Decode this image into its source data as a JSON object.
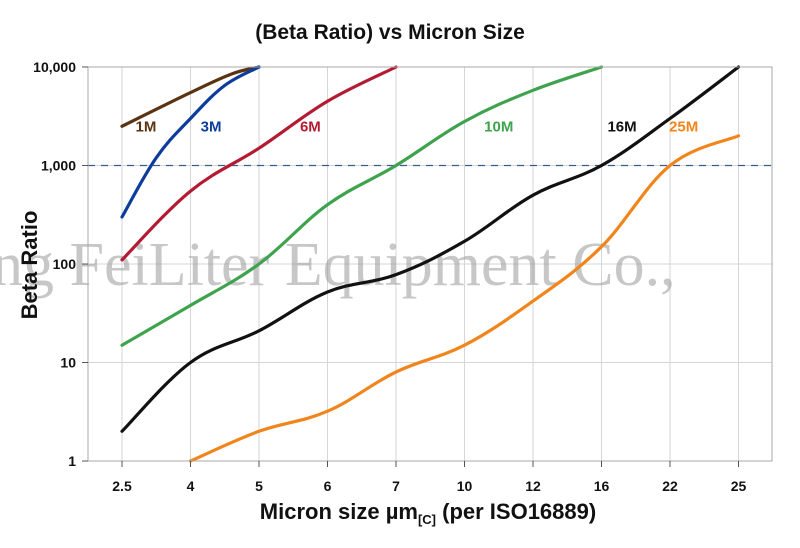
{
  "chart_data": {
    "type": "line",
    "title": "(Beta Ratio) vs Micron Size",
    "xlabel": "Micron size µm",
    "xlabel_subscript": "[C]",
    "xlabel_suffix": " (per ISO16889)",
    "ylabel": "Beta Ratio",
    "yscale": "log",
    "ylim": [
      1,
      10000
    ],
    "categories": [
      "2.5",
      "4",
      "5",
      "6",
      "7",
      "10",
      "12",
      "16",
      "22",
      "25"
    ],
    "y_ticks": [
      {
        "value": 1,
        "label": "1"
      },
      {
        "value": 10,
        "label": "10"
      },
      {
        "value": 100,
        "label": "100"
      },
      {
        "value": 1000,
        "label": "1,000"
      },
      {
        "value": 10000,
        "label": "10,000"
      }
    ],
    "grid": true,
    "reference_line": {
      "value": 1000,
      "style": "dashed",
      "color": "#3b5b8f"
    },
    "watermark": "ng FeiLiter Equipment Co.,",
    "series": [
      {
        "name": "1M",
        "color": "#5a3312",
        "points": [
          [
            0,
            2500
          ],
          [
            1,
            5500
          ],
          [
            1.6,
            8500
          ],
          [
            2,
            10000
          ]
        ],
        "label_pos": [
          0.35,
          2500
        ]
      },
      {
        "name": "3M",
        "color": "#0d3d9c",
        "points": [
          [
            0,
            300
          ],
          [
            0.5,
            1200
          ],
          [
            1,
            3000
          ],
          [
            1.5,
            6500
          ],
          [
            2,
            10000
          ]
        ],
        "label_pos": [
          1.3,
          2500
        ]
      },
      {
        "name": "6M",
        "color": "#b31b33",
        "points": [
          [
            0,
            110
          ],
          [
            1,
            550
          ],
          [
            2,
            1500
          ],
          [
            3,
            4500
          ],
          [
            4,
            10000
          ]
        ],
        "label_pos": [
          2.75,
          2500
        ]
      },
      {
        "name": "10M",
        "color": "#3fa34d",
        "points": [
          [
            0,
            15
          ],
          [
            1,
            38
          ],
          [
            2,
            100
          ],
          [
            3,
            400
          ],
          [
            4,
            1000
          ],
          [
            5,
            2800
          ],
          [
            6,
            5800
          ],
          [
            7,
            10000
          ]
        ],
        "label_pos": [
          5.5,
          2500
        ]
      },
      {
        "name": "16M",
        "color": "#111111",
        "points": [
          [
            0,
            2
          ],
          [
            1,
            10
          ],
          [
            2,
            21
          ],
          [
            3,
            52
          ],
          [
            4,
            78
          ],
          [
            5,
            170
          ],
          [
            6,
            500
          ],
          [
            7,
            1000
          ],
          [
            8,
            3000
          ],
          [
            9,
            10000
          ]
        ],
        "label_pos": [
          7.3,
          2500
        ]
      },
      {
        "name": "25M",
        "color": "#f0851c",
        "points": [
          [
            1,
            1
          ],
          [
            2,
            2
          ],
          [
            3,
            3.2
          ],
          [
            4,
            8
          ],
          [
            5,
            15
          ],
          [
            6,
            42
          ],
          [
            7,
            150
          ],
          [
            8,
            1000
          ],
          [
            9,
            2000
          ]
        ],
        "label_pos": [
          8.2,
          2500
        ]
      }
    ]
  }
}
